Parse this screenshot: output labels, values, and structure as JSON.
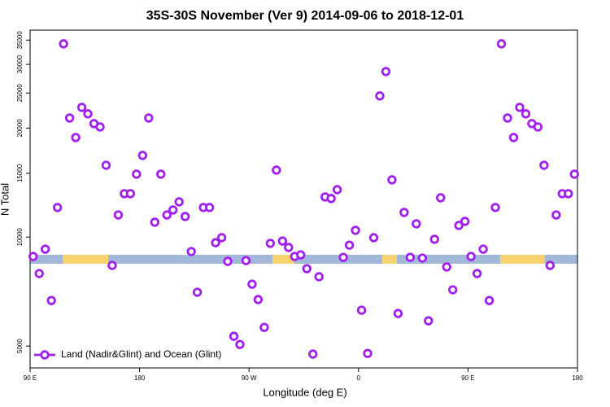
{
  "chart_data": {
    "type": "scatter",
    "title": "35S-30S November (Ver 9)   2014-09-06 to 2018-12-01",
    "x_label": "Longitude (deg E)",
    "y_label": "N Total",
    "log_y": true,
    "xlim": [
      90,
      540
    ],
    "ylim": [
      4350,
      37300
    ],
    "xticks": [
      {
        "value": 90,
        "label": "90 E"
      },
      180,
      {
        "value": 270,
        "label": "90 W"
      },
      {
        "value": 360,
        "label": "0"
      },
      {
        "value": 450,
        "label": "90 E"
      },
      {
        "value": 540,
        "label": "180"
      }
    ],
    "yticks": [
      5000,
      10000,
      15000,
      20000,
      25000,
      30000,
      35000
    ],
    "legend_position": "bottom-left",
    "series": [
      {
        "name": "Land (Nadir&Glint) and Ocean (Glint)",
        "color": "#a020f0",
        "x": [
          92.5,
          97.5,
          102.5,
          107.5,
          112.5,
          117.5,
          122.5,
          127.5,
          132.5,
          137.5,
          142.5,
          147.5,
          152.5,
          157.5,
          162.5,
          167.5,
          172.5,
          177.5,
          182.5,
          187.5,
          192.5,
          197.5,
          202.5,
          207.5,
          212.5,
          217.5,
          222.5,
          227.5,
          232.5,
          237.5,
          242.5,
          247.5,
          252.5,
          257.5,
          262.5,
          267.5,
          272.5,
          277.5,
          282.5,
          287.5,
          292.5,
          297.5,
          302.5,
          307.5,
          312.5,
          317.5,
          322.5,
          327.5,
          332.5,
          337.5,
          342.5,
          347.5,
          352.5,
          357.5,
          362.5,
          367.5,
          372.5,
          377.5,
          382.5,
          387.5,
          392.5,
          397.5,
          402.5,
          407.5,
          412.5,
          417.5,
          422.5,
          427.5,
          432.5,
          437.5,
          442.5,
          447.5,
          452.5,
          457.5,
          462.5,
          467.5,
          472.5,
          477.5,
          482.5,
          487.5,
          492.5,
          497.5,
          502.5,
          507.5,
          512.5,
          517.5,
          522.5,
          527.5,
          532.5,
          537.5
        ],
        "values": [
          8840,
          7930,
          9260,
          6680,
          12070,
          34180,
          21330,
          18840,
          22820,
          21900,
          20580,
          20150,
          15790,
          8350,
          11510,
          13180,
          13180,
          14920,
          16810,
          21330,
          10990,
          14920,
          11510,
          11880,
          12510,
          11400,
          9120,
          7040,
          12070,
          12070,
          9650,
          9960,
          8570,
          5320,
          5050,
          8610,
          7410,
          6720,
          5630,
          9610,
          15310,
          9750,
          9360,
          8840,
          8930,
          8180,
          4750,
          7770,
          12910,
          12780,
          13520,
          8790,
          9500,
          10440,
          6280,
          4770,
          9960,
          24540,
          28660,
          14390,
          6150,
          11700,
          8790,
          10880,
          8750,
          5870,
          9860,
          12840,
          8270,
          7150,
          10770,
          11050,
          8840,
          7930,
          9260,
          6680,
          12070,
          34180,
          21330,
          18840,
          22820,
          21900,
          20580,
          20150,
          15790,
          8350,
          11510,
          13180,
          13180,
          14920
        ]
      }
    ]
  }
}
